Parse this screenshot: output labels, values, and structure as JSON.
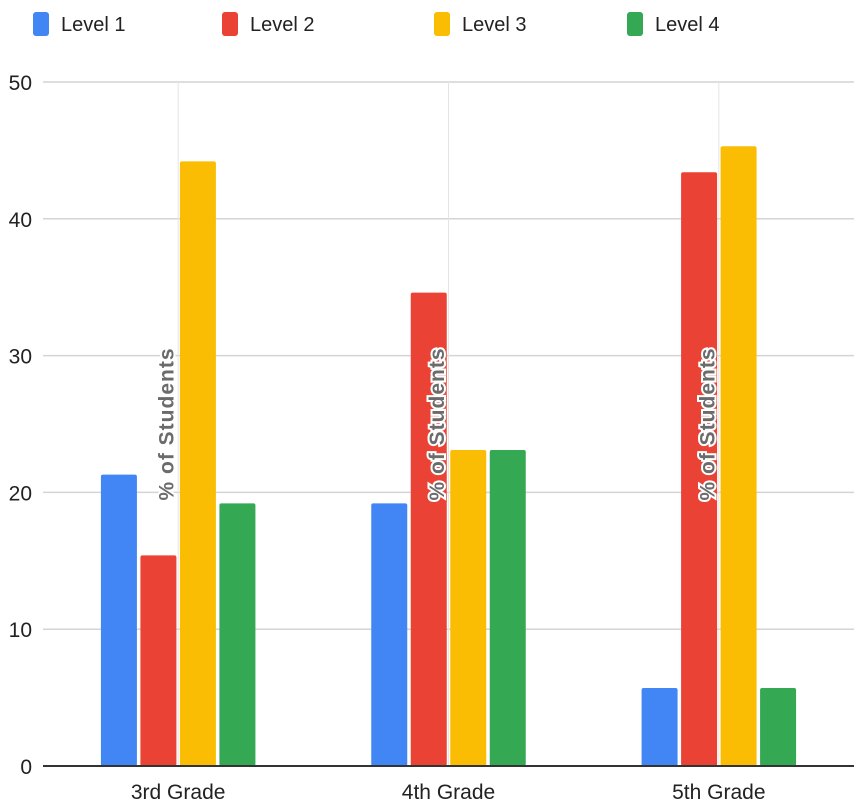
{
  "chart_data": {
    "type": "bar",
    "categories": [
      "3rd Grade",
      "4th Grade",
      "5th Grade"
    ],
    "series": [
      {
        "name": "Level 1",
        "color": "#4285f4",
        "values": [
          21.3,
          19.2,
          5.7
        ]
      },
      {
        "name": "Level 2",
        "color": "#ea4335",
        "values": [
          15.4,
          34.6,
          43.4
        ]
      },
      {
        "name": "Level 3",
        "color": "#fbbc04",
        "values": [
          44.2,
          23.1,
          45.3
        ]
      },
      {
        "name": "Level 4",
        "color": "#34a853",
        "values": [
          19.2,
          23.1,
          5.7
        ]
      }
    ],
    "ylim": [
      0,
      50
    ],
    "yticks": [
      0,
      10,
      20,
      30,
      40,
      50
    ],
    "overlay_label": "% of Students",
    "legend_position": "top",
    "grid": true
  }
}
